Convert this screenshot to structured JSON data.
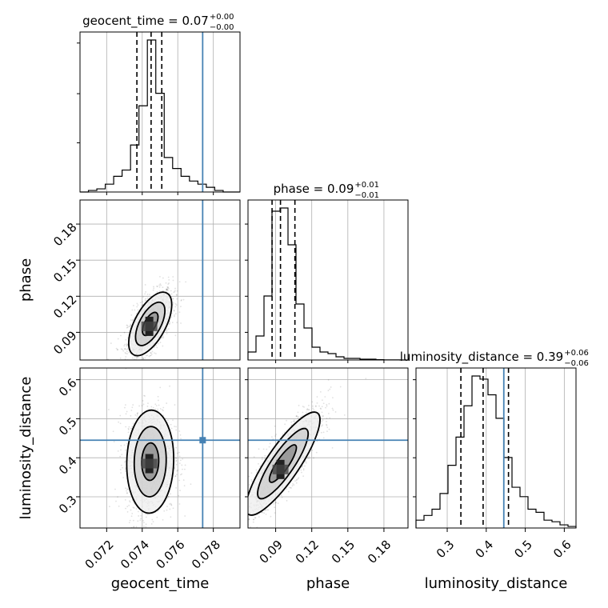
{
  "chart_data": {
    "type": "corner",
    "parameters": [
      {
        "name": "geocent_time",
        "range": [
          0.0705,
          0.0795
        ],
        "ticks": [
          0.072,
          0.074,
          0.076,
          0.078
        ],
        "tick_labels": [
          "0.072",
          "0.074",
          "0.076",
          "0.078"
        ],
        "truth": 0.0774,
        "quantiles": [
          0.0737,
          0.0745,
          0.0751
        ],
        "title": {
          "main": "geocent_time = 0.07",
          "sup": "+0.00",
          "sub": "−0.00"
        },
        "hist": [
          0,
          0.01,
          0.02,
          0.05,
          0.1,
          0.14,
          0.3,
          0.55,
          0.97,
          0.63,
          0.22,
          0.15,
          0.1,
          0.07,
          0.05,
          0.03,
          0.01,
          0,
          0
        ]
      },
      {
        "name": "phase",
        "range": [
          0.067,
          0.2
        ],
        "ticks": [
          0.09,
          0.12,
          0.15,
          0.18
        ],
        "tick_labels": [
          "0.09",
          "0.12",
          "0.15",
          "0.18"
        ],
        "truth": null,
        "quantiles": [
          0.087,
          0.094,
          0.106
        ],
        "title": {
          "main": "phase = 0.09",
          "sup": "+0.01",
          "sub": "−0.01"
        },
        "hist": [
          0.05,
          0.15,
          0.4,
          0.93,
          0.95,
          0.72,
          0.35,
          0.2,
          0.08,
          0.05,
          0.04,
          0.02,
          0.01,
          0.01,
          0.005,
          0.005,
          0.002,
          0.001,
          0.001,
          0
        ]
      },
      {
        "name": "luminosity_distance",
        "range": [
          0.22,
          0.63
        ],
        "ticks": [
          0.3,
          0.4,
          0.5,
          0.6
        ],
        "tick_labels": [
          "0.3",
          "0.4",
          "0.5",
          "0.6"
        ],
        "truth": 0.445,
        "quantiles": [
          0.335,
          0.392,
          0.457
        ],
        "title": {
          "main": "luminosity_distance = 0.39",
          "sup": "+0.06",
          "sub": "−0.06"
        },
        "hist": [
          0.05,
          0.08,
          0.12,
          0.22,
          0.4,
          0.58,
          0.78,
          0.97,
          0.95,
          0.85,
          0.7,
          0.45,
          0.26,
          0.2,
          0.12,
          0.1,
          0.05,
          0.04,
          0.02,
          0.01
        ]
      }
    ],
    "pairs": [
      {
        "x": "geocent_time",
        "y": "phase",
        "center": [
          0.07445,
          0.097
        ],
        "spread": [
          0.00055,
          0.012
        ],
        "corr": 0.6,
        "peak": [
          0.0744,
          0.095
        ]
      },
      {
        "x": "geocent_time",
        "y": "luminosity_distance",
        "center": [
          0.07445,
          0.39
        ],
        "spread": [
          0.0006,
          0.06
        ],
        "corr": 0.05,
        "peak": [
          0.0744,
          0.385
        ]
      },
      {
        "x": "phase",
        "y": "luminosity_distance",
        "center": [
          0.096,
          0.385
        ],
        "spread": [
          0.014,
          0.06
        ],
        "corr": 0.85,
        "peak": [
          0.094,
          0.37
        ]
      }
    ],
    "truth_point": {
      "x": "geocent_time",
      "y": "luminosity_distance",
      "value": [
        0.0774,
        0.445
      ]
    },
    "truth_color": "#4682b4",
    "grid": true
  }
}
